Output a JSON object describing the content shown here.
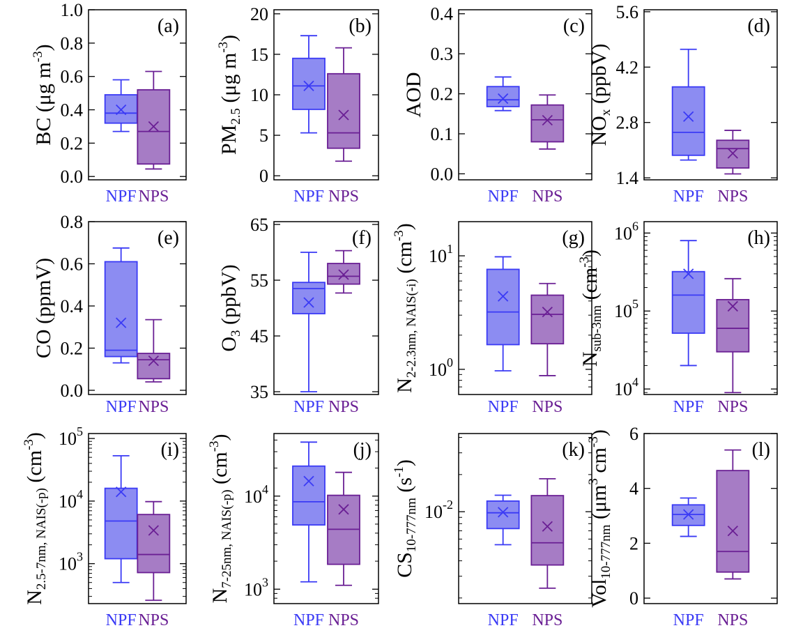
{
  "categories": [
    "NPF",
    "NPS"
  ],
  "colors": {
    "NPF": "#3A3AF5",
    "NPF_fill": "#8C8CF2",
    "NPS": "#6A1F94",
    "NPS_fill": "#A67CC5",
    "frame": "#000000"
  },
  "chart_data": [
    {
      "type": "box",
      "panel_label": "(a)",
      "scale": "linear",
      "ylabel": [
        {
          "t": "BC (μg m"
        },
        {
          "t": "-3",
          "s": "sup"
        },
        {
          "t": ")"
        }
      ],
      "ylim": [
        -0.02,
        1.0
      ],
      "yticks": [
        0.0,
        0.2,
        0.4,
        0.6,
        0.8,
        1.0
      ],
      "ytick_labels": [
        "0.0",
        "0.2",
        "0.4",
        "0.6",
        "0.8",
        "1.0"
      ],
      "series": [
        {
          "name": "NPF",
          "whisker_low": 0.27,
          "q1": 0.32,
          "median": 0.38,
          "q3": 0.49,
          "whisker_high": 0.58,
          "mean": 0.4
        },
        {
          "name": "NPS",
          "whisker_low": 0.045,
          "q1": 0.075,
          "median": 0.27,
          "q3": 0.52,
          "whisker_high": 0.63,
          "mean": 0.3
        }
      ]
    },
    {
      "type": "box",
      "panel_label": "(b)",
      "scale": "linear",
      "ylabel": [
        {
          "t": "PM"
        },
        {
          "t": "2.5",
          "s": "sub"
        },
        {
          "t": " (μg m"
        },
        {
          "t": "-3",
          "s": "sup"
        },
        {
          "t": ")"
        }
      ],
      "ylim": [
        -0.5,
        20.5
      ],
      "yticks": [
        0,
        5,
        10,
        15,
        20
      ],
      "ytick_labels": [
        "0",
        "5",
        "10",
        "15",
        "20"
      ],
      "series": [
        {
          "name": "NPF",
          "whisker_low": 5.3,
          "q1": 8.2,
          "median": 11.1,
          "q3": 14.5,
          "whisker_high": 17.3,
          "mean": 11.1
        },
        {
          "name": "NPS",
          "whisker_low": 1.8,
          "q1": 3.4,
          "median": 5.3,
          "q3": 12.6,
          "whisker_high": 15.8,
          "mean": 7.5
        }
      ]
    },
    {
      "type": "box",
      "panel_label": "(c)",
      "scale": "linear",
      "ylabel": [
        {
          "t": "AOD"
        }
      ],
      "ylim": [
        -0.015,
        0.41
      ],
      "yticks": [
        0.0,
        0.1,
        0.2,
        0.3,
        0.4
      ],
      "ytick_labels": [
        "0.0",
        "0.1",
        "0.2",
        "0.3",
        "0.4"
      ],
      "series": [
        {
          "name": "NPF",
          "whisker_low": 0.158,
          "q1": 0.168,
          "median": 0.185,
          "q3": 0.218,
          "whisker_high": 0.242,
          "mean": 0.188
        },
        {
          "name": "NPS",
          "whisker_low": 0.062,
          "q1": 0.08,
          "median": 0.135,
          "q3": 0.172,
          "whisker_high": 0.197,
          "mean": 0.134
        }
      ]
    },
    {
      "type": "box",
      "panel_label": "(d)",
      "scale": "linear",
      "ylabel": [
        {
          "t": "NO"
        },
        {
          "t": "x",
          "s": "sub"
        },
        {
          "t": " (ppbV)"
        }
      ],
      "ylim": [
        1.35,
        5.65
      ],
      "yticks": [
        1.4,
        2.8,
        4.2,
        5.6
      ],
      "ytick_labels": [
        "1.4",
        "2.8",
        "4.2",
        "5.6"
      ],
      "series": [
        {
          "name": "NPF",
          "whisker_low": 1.85,
          "q1": 1.97,
          "median": 2.55,
          "q3": 3.7,
          "whisker_high": 4.65,
          "mean": 2.95
        },
        {
          "name": "NPS",
          "whisker_low": 1.5,
          "q1": 1.65,
          "median": 2.14,
          "q3": 2.35,
          "whisker_high": 2.6,
          "mean": 2.02
        }
      ]
    },
    {
      "type": "box",
      "panel_label": "(e)",
      "scale": "linear",
      "ylabel": [
        {
          "t": "CO (ppmV)"
        }
      ],
      "ylim": [
        -0.02,
        0.8
      ],
      "yticks": [
        0.0,
        0.2,
        0.4,
        0.6,
        0.8
      ],
      "ytick_labels": [
        "0.0",
        "0.2",
        "0.4",
        "0.6",
        "0.8"
      ],
      "series": [
        {
          "name": "NPF",
          "whisker_low": 0.13,
          "q1": 0.16,
          "median": 0.19,
          "q3": 0.61,
          "whisker_high": 0.675,
          "mean": 0.32
        },
        {
          "name": "NPS",
          "whisker_low": 0.04,
          "q1": 0.055,
          "median": 0.145,
          "q3": 0.175,
          "whisker_high": 0.335,
          "mean": 0.14
        }
      ]
    },
    {
      "type": "box",
      "panel_label": "(f)",
      "scale": "linear",
      "ylabel": [
        {
          "t": "O"
        },
        {
          "t": "3",
          "s": "sub"
        },
        {
          "t": " (ppbV)"
        }
      ],
      "ylim": [
        34.5,
        65.5
      ],
      "yticks": [
        35,
        45,
        55,
        65
      ],
      "ytick_labels": [
        "35",
        "45",
        "55",
        "65"
      ],
      "series": [
        {
          "name": "NPF",
          "whisker_low": 35.0,
          "q1": 49.0,
          "median": 53.5,
          "q3": 54.6,
          "whisker_high": 60.0,
          "mean": 51.0
        },
        {
          "name": "NPS",
          "whisker_low": 52.7,
          "q1": 54.3,
          "median": 55.7,
          "q3": 58.0,
          "whisker_high": 60.3,
          "mean": 56.0
        }
      ]
    },
    {
      "type": "box",
      "panel_label": "(g)",
      "scale": "log",
      "ylabel": [
        {
          "t": "N"
        },
        {
          "t": "2-2.3nm, NAIS(-i)",
          "s": "sub"
        },
        {
          "t": " (cm"
        },
        {
          "t": "-3",
          "s": "sup"
        },
        {
          "t": ")"
        }
      ],
      "ylim": [
        0.6,
        20
      ],
      "yticks": [
        1,
        10
      ],
      "ytick_labels": [
        {
          "b": "10",
          "e": "0"
        },
        {
          "b": "10",
          "e": "1"
        }
      ],
      "series": [
        {
          "name": "NPF",
          "whisker_low": 0.97,
          "q1": 1.65,
          "median": 3.2,
          "q3": 7.6,
          "whisker_high": 9.8,
          "mean": 4.4
        },
        {
          "name": "NPS",
          "whisker_low": 0.88,
          "q1": 1.68,
          "median": 3.05,
          "q3": 4.5,
          "whisker_high": 5.7,
          "mean": 3.2
        }
      ]
    },
    {
      "type": "box",
      "panel_label": "(h)",
      "scale": "log",
      "ylabel": [
        {
          "t": "N"
        },
        {
          "t": "sub-3nm",
          "s": "sub"
        },
        {
          "t": " (cm"
        },
        {
          "t": "-3",
          "s": "sup"
        },
        {
          "t": ")"
        }
      ],
      "ylim": [
        8500,
        1400000
      ],
      "yticks": [
        10000,
        100000,
        1000000
      ],
      "ytick_labels": [
        {
          "b": "10",
          "e": "4"
        },
        {
          "b": "10",
          "e": "5"
        },
        {
          "b": "10",
          "e": "6"
        }
      ],
      "series": [
        {
          "name": "NPF",
          "whisker_low": 20000,
          "q1": 52000,
          "median": 160000,
          "q3": 320000,
          "whisker_high": 800000,
          "mean": 300000
        },
        {
          "name": "NPS",
          "whisker_low": 9000,
          "q1": 30000,
          "median": 60000,
          "q3": 140000,
          "whisker_high": 260000,
          "mean": 115000
        }
      ]
    },
    {
      "type": "box",
      "panel_label": "(i)",
      "scale": "log",
      "ylabel": [
        {
          "t": "N"
        },
        {
          "t": "2.5-7nm, NAIS(-p)",
          "s": "sub"
        },
        {
          "t": " (cm"
        },
        {
          "t": "-3",
          "s": "sup"
        },
        {
          "t": ")"
        }
      ],
      "ylim": [
        230,
        120000
      ],
      "yticks": [
        1000,
        10000,
        100000
      ],
      "ytick_labels": [
        {
          "b": "10",
          "e": "3"
        },
        {
          "b": "10",
          "e": "4"
        },
        {
          "b": "10",
          "e": "5"
        }
      ],
      "series": [
        {
          "name": "NPF",
          "whisker_low": 500,
          "q1": 1200,
          "median": 4800,
          "q3": 16000,
          "whisker_high": 53000,
          "mean": 14000
        },
        {
          "name": "NPS",
          "whisker_low": 260,
          "q1": 720,
          "median": 1400,
          "q3": 6100,
          "whisker_high": 9800,
          "mean": 3400
        }
      ]
    },
    {
      "type": "box",
      "panel_label": "(j)",
      "scale": "log",
      "ylabel": [
        {
          "t": "N"
        },
        {
          "t": "7-25nm, NAIS(-p)",
          "s": "sub"
        },
        {
          "t": " (cm"
        },
        {
          "t": "-3",
          "s": "sup"
        },
        {
          "t": ")"
        }
      ],
      "ylim": [
        700,
        47000
      ],
      "yticks": [
        1000,
        10000
      ],
      "ytick_labels": [
        {
          "b": "10",
          "e": "3"
        },
        {
          "b": "10",
          "e": "4"
        }
      ],
      "series": [
        {
          "name": "NPF",
          "whisker_low": 1200,
          "q1": 4900,
          "median": 8700,
          "q3": 21000,
          "whisker_high": 38000,
          "mean": 14500
        },
        {
          "name": "NPS",
          "whisker_low": 1100,
          "q1": 1850,
          "median": 4400,
          "q3": 10200,
          "whisker_high": 18000,
          "mean": 7200
        }
      ]
    },
    {
      "type": "box",
      "panel_label": "(k)",
      "scale": "log",
      "ylabel": [
        {
          "t": "CS"
        },
        {
          "t": "10-777nm",
          "s": "sub"
        },
        {
          "t": " (s"
        },
        {
          "t": "-1",
          "s": "sup"
        },
        {
          "t": ")"
        }
      ],
      "ylim": [
        0.0018,
        0.043
      ],
      "yticks": [
        0.01
      ],
      "ytick_labels": [
        {
          "b": "10",
          "e": "-2"
        }
      ],
      "series": [
        {
          "name": "NPF",
          "whisker_low": 0.0054,
          "q1": 0.0073,
          "median": 0.0098,
          "q3": 0.0122,
          "whisker_high": 0.0136,
          "mean": 0.0099
        },
        {
          "name": "NPS",
          "whisker_low": 0.0024,
          "q1": 0.0037,
          "median": 0.0056,
          "q3": 0.0135,
          "whisker_high": 0.0185,
          "mean": 0.0076
        }
      ]
    },
    {
      "type": "box",
      "panel_label": "(l)",
      "scale": "linear",
      "ylabel": [
        {
          "t": "Vol"
        },
        {
          "t": "10-777nm",
          "s": "sub"
        },
        {
          "t": " (μm"
        },
        {
          "t": "3",
          "s": "sup"
        },
        {
          "t": " cm"
        },
        {
          "t": "-3",
          "s": "sup"
        },
        {
          "t": ")"
        }
      ],
      "ylim": [
        -0.2,
        6.0
      ],
      "yticks": [
        0,
        2,
        4,
        6
      ],
      "ytick_labels": [
        "0",
        "2",
        "4",
        "6"
      ],
      "series": [
        {
          "name": "NPF",
          "whisker_low": 2.25,
          "q1": 2.65,
          "median": 3.05,
          "q3": 3.4,
          "whisker_high": 3.65,
          "mean": 3.05
        },
        {
          "name": "NPS",
          "whisker_low": 0.7,
          "q1": 0.95,
          "median": 1.7,
          "q3": 4.65,
          "whisker_high": 5.4,
          "mean": 2.45
        }
      ]
    }
  ]
}
